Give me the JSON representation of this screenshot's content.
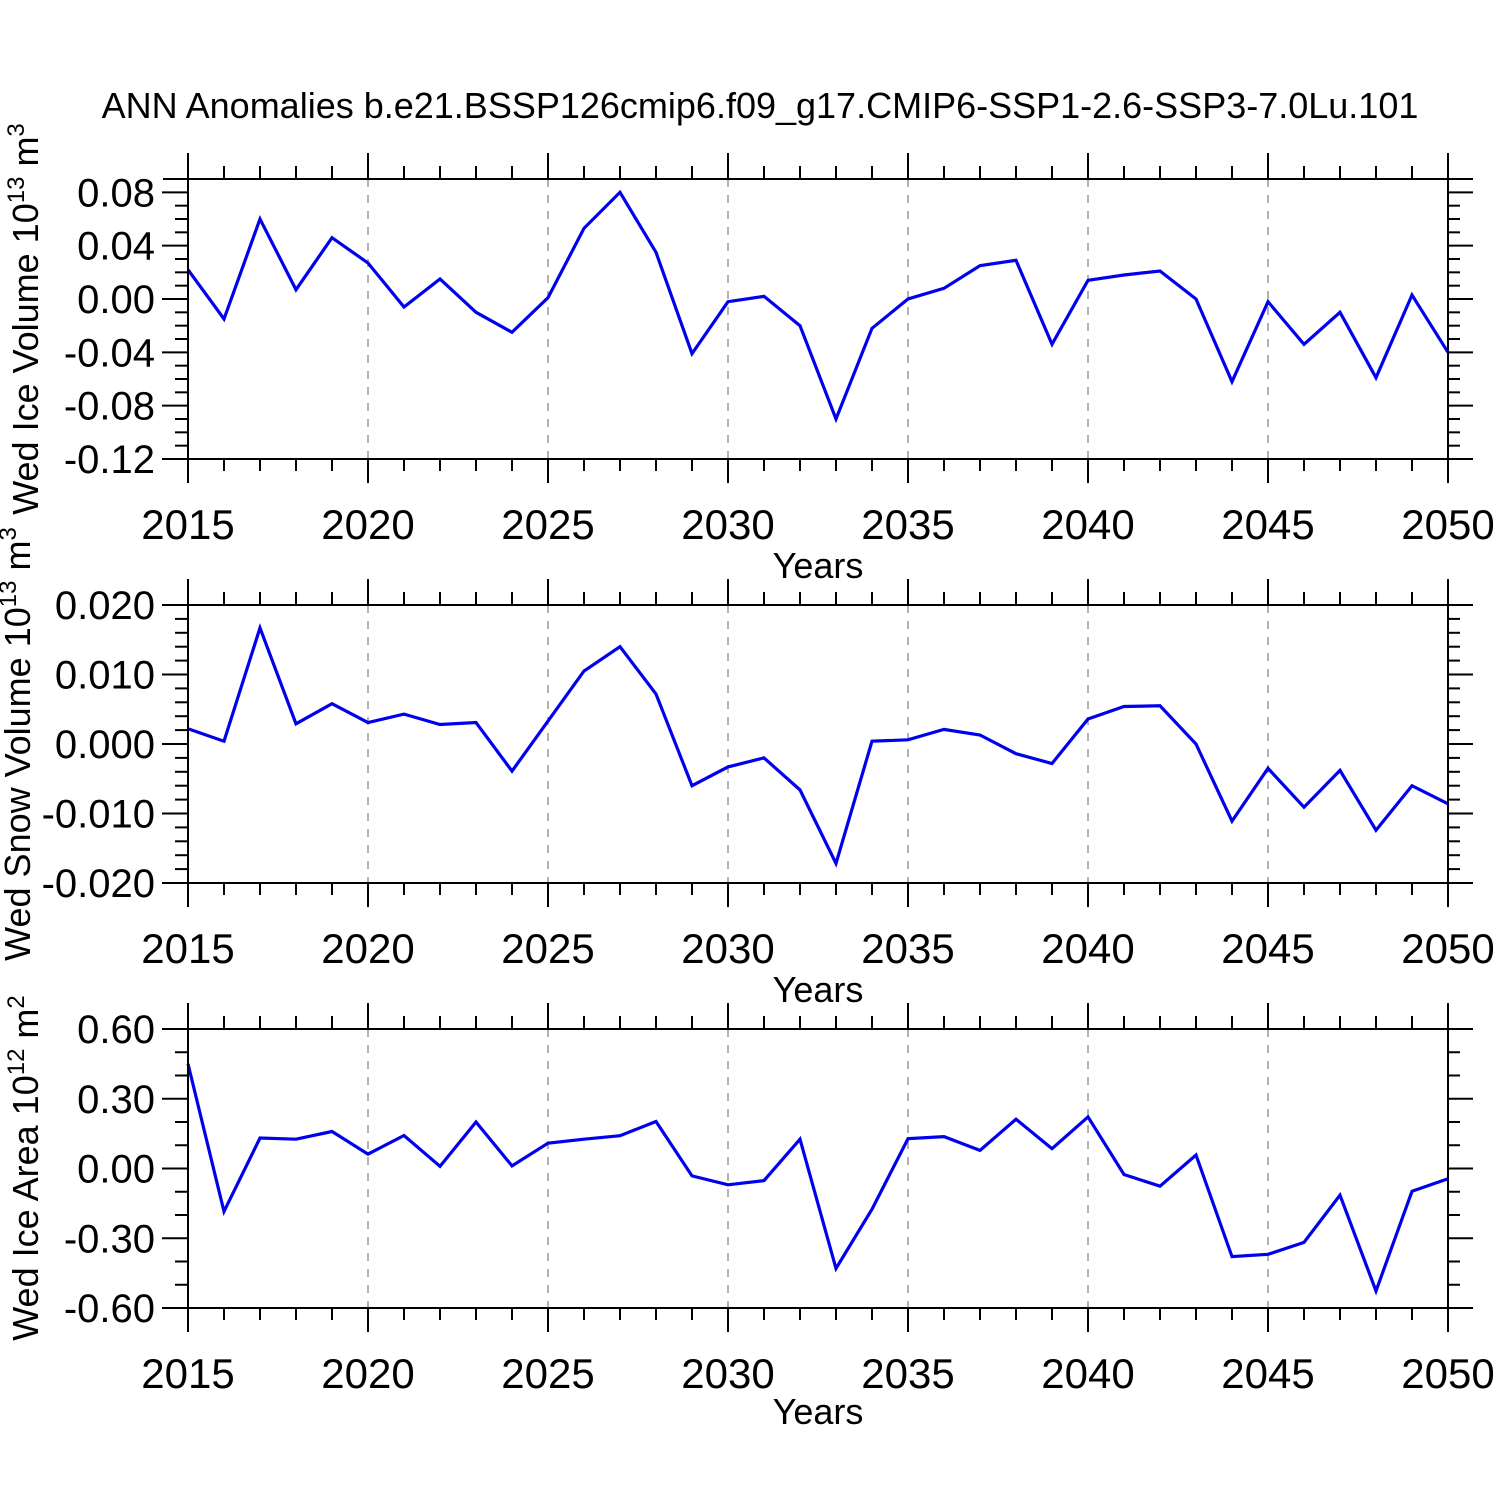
{
  "title": "ANN Anomalies b.e21.BSSP126cmip6.f09_g17.CMIP6-SSP1-2.6-SSP3-7.0Lu.101",
  "xlabel": "Years",
  "x_tick_labels": [
    "2015",
    "2020",
    "2025",
    "2030",
    "2035",
    "2040",
    "2045",
    "2050"
  ],
  "line_color": "#0000EE",
  "grid_color": "#999999",
  "axis_color": "#000000",
  "chart_data": [
    {
      "type": "line",
      "ylabel_parts": {
        "text1": "Wed Ice Volume 10",
        "sup1": "13",
        "text2": " m",
        "sup2": "3"
      },
      "xlabel": "Years",
      "ylim": [
        -0.12,
        0.09
      ],
      "xlim": [
        2015,
        2050
      ],
      "y_major_ticks": [
        0.08,
        0.04,
        0.0,
        -0.04,
        -0.08,
        -0.12
      ],
      "y_tick_labels": [
        "0.08",
        "0.04",
        "0.00",
        "-0.04",
        "-0.08",
        "-0.12"
      ],
      "y_minor_step": 0.01,
      "x_major_ticks": [
        2015,
        2020,
        2025,
        2030,
        2035,
        2040,
        2045,
        2050
      ],
      "gridline_x": [
        2020,
        2025,
        2030,
        2035,
        2040,
        2045
      ],
      "x": [
        2015,
        2016,
        2017,
        2018,
        2019,
        2020,
        2021,
        2022,
        2023,
        2024,
        2025,
        2026,
        2027,
        2028,
        2029,
        2030,
        2031,
        2032,
        2033,
        2034,
        2035,
        2036,
        2037,
        2038,
        2039,
        2040,
        2041,
        2042,
        2043,
        2044,
        2045,
        2046,
        2047,
        2048,
        2049,
        2050
      ],
      "values": [
        0.022,
        -0.015,
        0.06,
        0.007,
        0.046,
        0.027,
        -0.006,
        0.015,
        -0.01,
        -0.025,
        0.001,
        0.053,
        0.08,
        0.035,
        -0.041,
        -0.002,
        0.002,
        -0.02,
        -0.09,
        -0.022,
        0.0,
        0.008,
        0.025,
        0.029,
        -0.034,
        0.014,
        0.018,
        0.021,
        0.0,
        -0.062,
        -0.002,
        -0.034,
        -0.01,
        -0.059,
        0.003,
        -0.04
      ]
    },
    {
      "type": "line",
      "ylabel_parts": {
        "text1": "Wed Snow Volume 10",
        "sup1": "13",
        "text2": " m",
        "sup2": "3"
      },
      "xlabel": "Years",
      "ylim": [
        -0.02,
        0.02
      ],
      "xlim": [
        2015,
        2050
      ],
      "y_major_ticks": [
        0.02,
        0.01,
        0.0,
        -0.01,
        -0.02
      ],
      "y_tick_labels": [
        "0.020",
        "0.010",
        "0.000",
        "-0.010",
        "-0.020"
      ],
      "y_minor_step": 0.002,
      "x_major_ticks": [
        2015,
        2020,
        2025,
        2030,
        2035,
        2040,
        2045,
        2050
      ],
      "gridline_x": [
        2020,
        2025,
        2030,
        2035,
        2040,
        2045
      ],
      "x": [
        2015,
        2016,
        2017,
        2018,
        2019,
        2020,
        2021,
        2022,
        2023,
        2024,
        2025,
        2026,
        2027,
        2028,
        2029,
        2030,
        2031,
        2032,
        2033,
        2034,
        2035,
        2036,
        2037,
        2038,
        2039,
        2040,
        2041,
        2042,
        2043,
        2044,
        2045,
        2046,
        2047,
        2048,
        2049,
        2050
      ],
      "values": [
        0.0022,
        0.0004,
        0.0167,
        0.0029,
        0.0058,
        0.0031,
        0.0043,
        0.0028,
        0.0031,
        -0.0039,
        0.0033,
        0.0105,
        0.014,
        0.0072,
        -0.006,
        -0.0033,
        -0.002,
        -0.0066,
        -0.0172,
        0.0004,
        0.0006,
        0.0021,
        0.0013,
        -0.0014,
        -0.0028,
        0.0036,
        0.0054,
        0.0055,
        0.0,
        -0.0111,
        -0.0035,
        -0.0091,
        -0.0038,
        -0.0124,
        -0.006,
        -0.0086
      ]
    },
    {
      "type": "line",
      "ylabel_parts": {
        "text1": "Wed Ice Area 10",
        "sup1": "12",
        "text2": " m",
        "sup2": "2"
      },
      "xlabel": "Years",
      "ylim": [
        -0.6,
        0.6
      ],
      "xlim": [
        2015,
        2050
      ],
      "y_major_ticks": [
        0.6,
        0.3,
        0.0,
        -0.3,
        -0.6
      ],
      "y_tick_labels": [
        "0.60",
        "0.30",
        "0.00",
        "-0.30",
        "-0.60"
      ],
      "y_minor_step": 0.1,
      "x_major_ticks": [
        2015,
        2020,
        2025,
        2030,
        2035,
        2040,
        2045,
        2050
      ],
      "gridline_x": [
        2020,
        2025,
        2030,
        2035,
        2040,
        2045
      ],
      "x": [
        2015,
        2016,
        2017,
        2018,
        2019,
        2020,
        2021,
        2022,
        2023,
        2024,
        2025,
        2026,
        2027,
        2028,
        2029,
        2030,
        2031,
        2032,
        2033,
        2034,
        2035,
        2036,
        2037,
        2038,
        2039,
        2040,
        2041,
        2042,
        2043,
        2044,
        2045,
        2046,
        2047,
        2048,
        2049,
        2050
      ],
      "values": [
        0.45,
        -0.185,
        0.131,
        0.126,
        0.159,
        0.062,
        0.142,
        0.009,
        0.2,
        0.011,
        0.109,
        0.126,
        0.141,
        0.202,
        -0.032,
        -0.07,
        -0.052,
        0.126,
        -0.43,
        -0.175,
        0.128,
        0.137,
        0.078,
        0.212,
        0.085,
        0.222,
        -0.026,
        -0.076,
        0.058,
        -0.379,
        -0.369,
        -0.318,
        -0.115,
        -0.527,
        -0.098,
        -0.044
      ]
    }
  ]
}
